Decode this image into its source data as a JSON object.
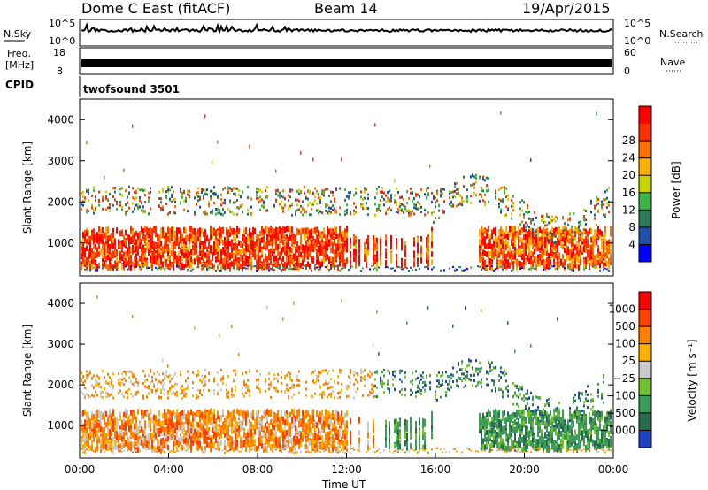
{
  "header": {
    "station": "Dome C East (fitACF)",
    "beam": "Beam 14",
    "date": "19/Apr/2015"
  },
  "top_panels": {
    "nsky_label": "N.Sky",
    "nsky_ticks": [
      "10^5",
      "10^0"
    ],
    "nsearch_label": "N.Search",
    "nsearch_ticks": [
      "10^5",
      "10^0"
    ],
    "freq_label_1": "Freq.",
    "freq_label_2": "[MHz]",
    "freq_ticks": [
      "18",
      "8"
    ],
    "nave_label": "Nave",
    "nave_ticks": [
      "60",
      "0"
    ],
    "cpid_label": "CPID",
    "cpid_value": "twofsound 3501"
  },
  "chart_data": [
    {
      "type": "heatmap",
      "name": "power-panel",
      "ylabel": "Slant Range [km]",
      "ylim": [
        200,
        4500
      ],
      "yticks": [
        "1000",
        "2000",
        "3000",
        "4000"
      ],
      "colorbar_label": "Power [dB]",
      "colorbar_ticks": [
        "4",
        "8",
        "12",
        "16",
        "20",
        "24",
        "28"
      ],
      "colors": [
        "#0000ff",
        "#2050a8",
        "#2a7a5a",
        "#3cb44b",
        "#c8d400",
        "#ffb000",
        "#ff7000",
        "#ff3000",
        "#ff0000"
      ]
    },
    {
      "type": "heatmap",
      "name": "velocity-panel",
      "ylabel": "Slant Range [km]",
      "ylim": [
        200,
        4500
      ],
      "yticks": [
        "1000",
        "2000",
        "3000",
        "4000"
      ],
      "colorbar_label": "Velocity [m s⁻¹]",
      "colorbar_ticks": [
        "1000",
        "500",
        "100",
        "25",
        "−25",
        "−100",
        "−500",
        "−1000"
      ],
      "colors": [
        "#2040c0",
        "#2a6a50",
        "#3c9a5a",
        "#70c030",
        "#c8c8c8",
        "#ffb000",
        "#ff8000",
        "#ff4000",
        "#ff0000"
      ],
      "xlabel": "Time UT",
      "xticks": [
        "00:00",
        "04:00",
        "08:00",
        "12:00",
        "16:00",
        "20:00",
        "00:00"
      ]
    }
  ]
}
